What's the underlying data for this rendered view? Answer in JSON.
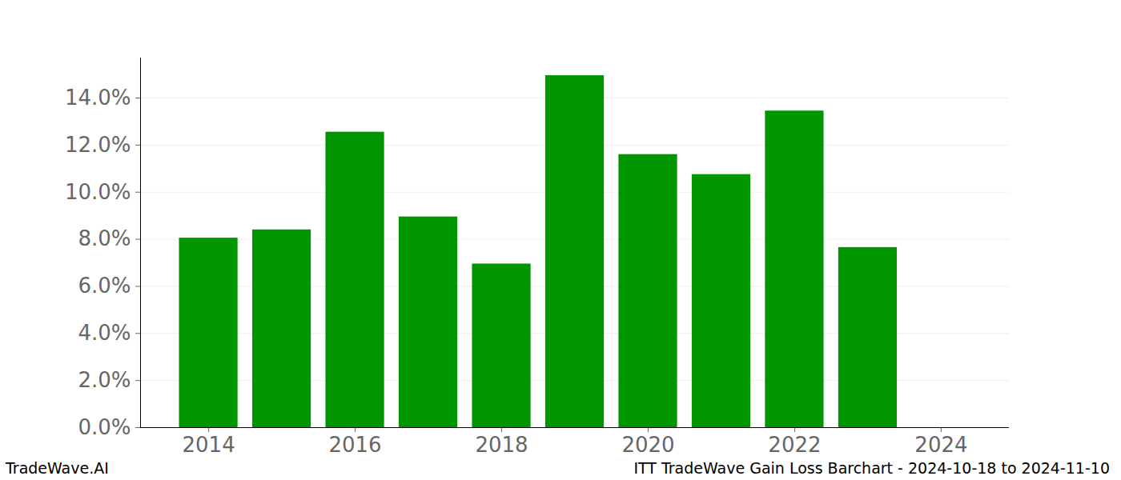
{
  "chart_data": {
    "type": "bar",
    "title": "ITT TradeWave Gain Loss Barchart - 2024-10-18 to 2024-11-10",
    "caption": "TradeWave.AI",
    "x": [
      2014,
      2015,
      2016,
      2017,
      2018,
      2019,
      2020,
      2021,
      2022,
      2023
    ],
    "values": [
      8.05,
      8.4,
      12.55,
      8.95,
      6.95,
      14.95,
      11.6,
      10.75,
      13.45,
      7.65
    ],
    "color": "#009600",
    "xlim": [
      2013.07,
      2024.93
    ],
    "xticks": [
      2014,
      2016,
      2018,
      2020,
      2022,
      2024
    ],
    "ylim": [
      0,
      15.7
    ],
    "yticks": [
      {
        "value": 0,
        "label": "0.0%"
      },
      {
        "value": 2,
        "label": "2.0%"
      },
      {
        "value": 4,
        "label": "4.0%"
      },
      {
        "value": 6,
        "label": "6.0%"
      },
      {
        "value": 8,
        "label": "8.0%"
      },
      {
        "value": 10,
        "label": "10.0%"
      },
      {
        "value": 12,
        "label": "12.0%"
      },
      {
        "value": 14,
        "label": "14.0%"
      }
    ],
    "grid": true
  }
}
